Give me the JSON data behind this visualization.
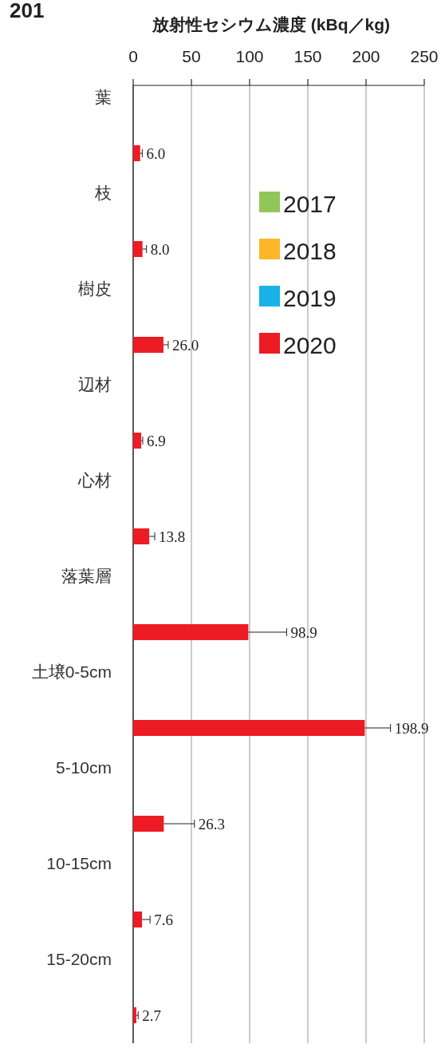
{
  "chart_data": {
    "type": "bar",
    "orientation": "horizontal",
    "title": "放射性セシウム濃度 (kBq／kg)",
    "annotations": [
      "201"
    ],
    "categories": [
      "葉",
      "枝",
      "樹皮",
      "辺材",
      "心材",
      "落葉層",
      "土壌0-5cm",
      "5-10cm",
      "10-15cm",
      "15-20cm"
    ],
    "series": [
      {
        "name": "2017",
        "color": "#92c65a",
        "values": [
          null,
          null,
          null,
          null,
          null,
          null,
          null,
          null,
          null,
          null
        ]
      },
      {
        "name": "2018",
        "color": "#fbb727",
        "values": [
          null,
          null,
          null,
          null,
          null,
          null,
          null,
          null,
          null,
          null
        ]
      },
      {
        "name": "2019",
        "color": "#19b2e6",
        "values": [
          null,
          null,
          null,
          null,
          null,
          null,
          null,
          null,
          null,
          null
        ]
      },
      {
        "name": "2020",
        "color": "#ed1c24",
        "values": [
          6.0,
          8.0,
          26.0,
          6.9,
          13.8,
          98.9,
          198.9,
          26.3,
          7.6,
          2.7
        ],
        "errors": [
          [
            6.0,
            7.8
          ],
          [
            8.0,
            11.4
          ],
          [
            26.0,
            30.1
          ],
          [
            6.9,
            8.2
          ],
          [
            13.8,
            18.5
          ],
          [
            98.9,
            131.8
          ],
          [
            198.9,
            221
          ],
          [
            26.3,
            52.6
          ],
          [
            7.6,
            14.5
          ],
          [
            2.7,
            4.3
          ]
        ],
        "value_labels": [
          "6.0",
          "8.0",
          "26.0",
          "6.9",
          "13.8",
          "98.9",
          "198.9",
          "26.3",
          "7.6",
          "2.7"
        ]
      }
    ],
    "xlim": [
      0,
      250
    ],
    "xticks": [
      0,
      50,
      100,
      150,
      200,
      250
    ],
    "grid": "x",
    "legend": "top right"
  }
}
